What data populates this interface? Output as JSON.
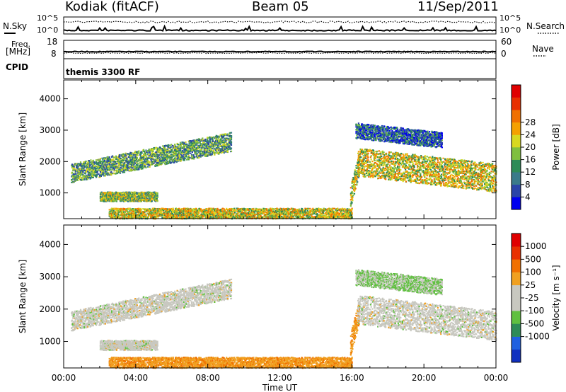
{
  "header": {
    "station": "Kodiak (fitACF)",
    "beam": "Beam 05",
    "date": "11/Sep/2011"
  },
  "side_labels": {
    "nsky": "N.Sky",
    "nsearch": "N.Search",
    "freq_line1": "Freq.",
    "freq_line2": "[MHz]",
    "nave": "Nave",
    "cpid": "CPID",
    "nsky_ticks": [
      "10^5",
      "10^0"
    ],
    "nsearch_ticks": [
      "10^5",
      "10^0"
    ],
    "freq_ticks": [
      "18",
      "8"
    ],
    "nave_ticks": [
      "60",
      "0"
    ],
    "cpid_value": "themis 3300 RF"
  },
  "chart_data": [
    {
      "type": "heatmap",
      "name": "power",
      "ylabel": "Slant Range [km]",
      "xlabel": "Time UT",
      "x_ticks": [
        "00:00",
        "04:00",
        "08:00",
        "12:00",
        "16:00",
        "20:00",
        "00:00"
      ],
      "y_ticks": [
        1000,
        2000,
        3000,
        4000
      ],
      "ylim": [
        180,
        4600
      ],
      "xlim_hours": [
        0,
        24
      ],
      "colorbar": {
        "label": "Power [dB]",
        "ticks": [
          "4",
          "8",
          "12",
          "16",
          "20",
          "24",
          "28"
        ],
        "colors": [
          "#0000ee",
          "#2a44a8",
          "#3a7a8a",
          "#2e8b57",
          "#7fbf3f",
          "#d8d820",
          "#f5a000",
          "#f07000",
          "#e83000",
          "#e00000"
        ]
      },
      "echo_bands": [
        {
          "t0": 0.4,
          "t1": 9.3,
          "r_start": 1650,
          "r_end": 2650,
          "width": 300,
          "level": 0.35
        },
        {
          "t0": 2.0,
          "t1": 5.2,
          "r_start": 900,
          "r_end": 900,
          "width": 150,
          "level": 0.45
        },
        {
          "t0": 2.5,
          "t1": 16.0,
          "r_start": 300,
          "r_end": 300,
          "width": 230,
          "level": 0.55
        },
        {
          "t0": 15.9,
          "t1": 16.4,
          "r_start": 900,
          "r_end": 2000,
          "width": 350,
          "level": 0.5
        },
        {
          "t0": 16.3,
          "t1": 24.0,
          "r_start": 2000,
          "r_end": 1500,
          "width": 450,
          "level": 0.55
        },
        {
          "t0": 16.2,
          "t1": 21.0,
          "r_start": 3000,
          "r_end": 2700,
          "width": 250,
          "level": 0.2
        }
      ]
    },
    {
      "type": "heatmap",
      "name": "velocity",
      "ylabel": "Slant Range [km]",
      "xlabel": "Time UT",
      "x_ticks": [
        "00:00",
        "04:00",
        "08:00",
        "12:00",
        "16:00",
        "20:00",
        "00:00"
      ],
      "y_ticks": [
        1000,
        2000,
        3000,
        4000
      ],
      "ylim": [
        180,
        4600
      ],
      "xlim_hours": [
        0,
        24
      ],
      "colorbar": {
        "label": "Velocity [m s⁻¹]",
        "ticks": [
          "1000",
          "500",
          "100",
          "25",
          "-25",
          "-100",
          "-500",
          "-1000"
        ],
        "colors": [
          "#1030c0",
          "#2060e0",
          "#2e8b57",
          "#60c040",
          "#c8c8c0",
          "#c8c8c0",
          "#f0a020",
          "#f07000",
          "#e83000",
          "#e00000"
        ]
      }
    }
  ],
  "colors": {
    "axis": "#000000",
    "background": "#ffffff",
    "ground_scatter": "#c8c8c0"
  }
}
